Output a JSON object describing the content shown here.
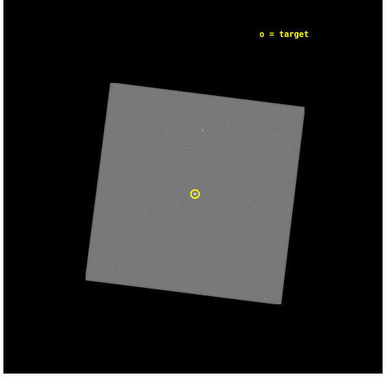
{
  "legend": {
    "text": "o = target"
  }
}
